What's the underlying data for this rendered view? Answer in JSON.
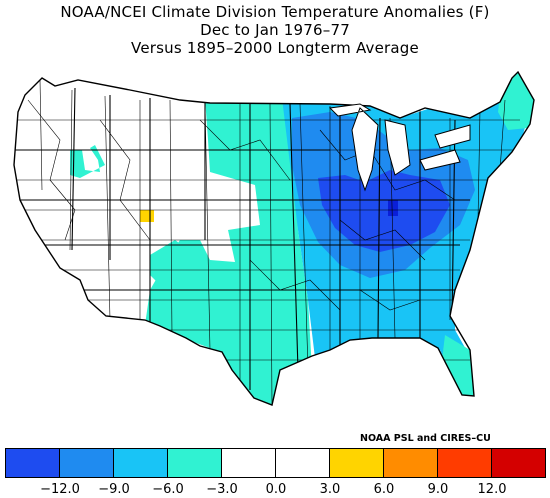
{
  "title": {
    "line1": "NOAA/NCEI Climate Division Temperature Anomalies (F)",
    "line2": "Dec to Jan 1976–77",
    "line3": "Versus 1895–2000 Longterm Average"
  },
  "credit": "NOAA PSL and CIRES–CU",
  "legend": {
    "colors": [
      "#1e4cf0",
      "#1f8bf0",
      "#19c4f6",
      "#30f2d2",
      "#ffffff",
      "#ffffff",
      "#ffd400",
      "#ff8c00",
      "#ff3c00",
      "#d40000"
    ],
    "ticks": [
      "−12.0",
      "−9.0",
      "−6.0",
      "−3.0",
      "0.0",
      "3.0",
      "6.0",
      "9.0",
      "12.0"
    ]
  },
  "map_colors": {
    "lightest": "#30f2d2",
    "light": "#19c4f6",
    "medium": "#1f8bf0",
    "strong": "#1e4cf0",
    "darkest": "#0a1fd8",
    "warm": "#ffd400",
    "neutral": "#ffffff"
  }
}
